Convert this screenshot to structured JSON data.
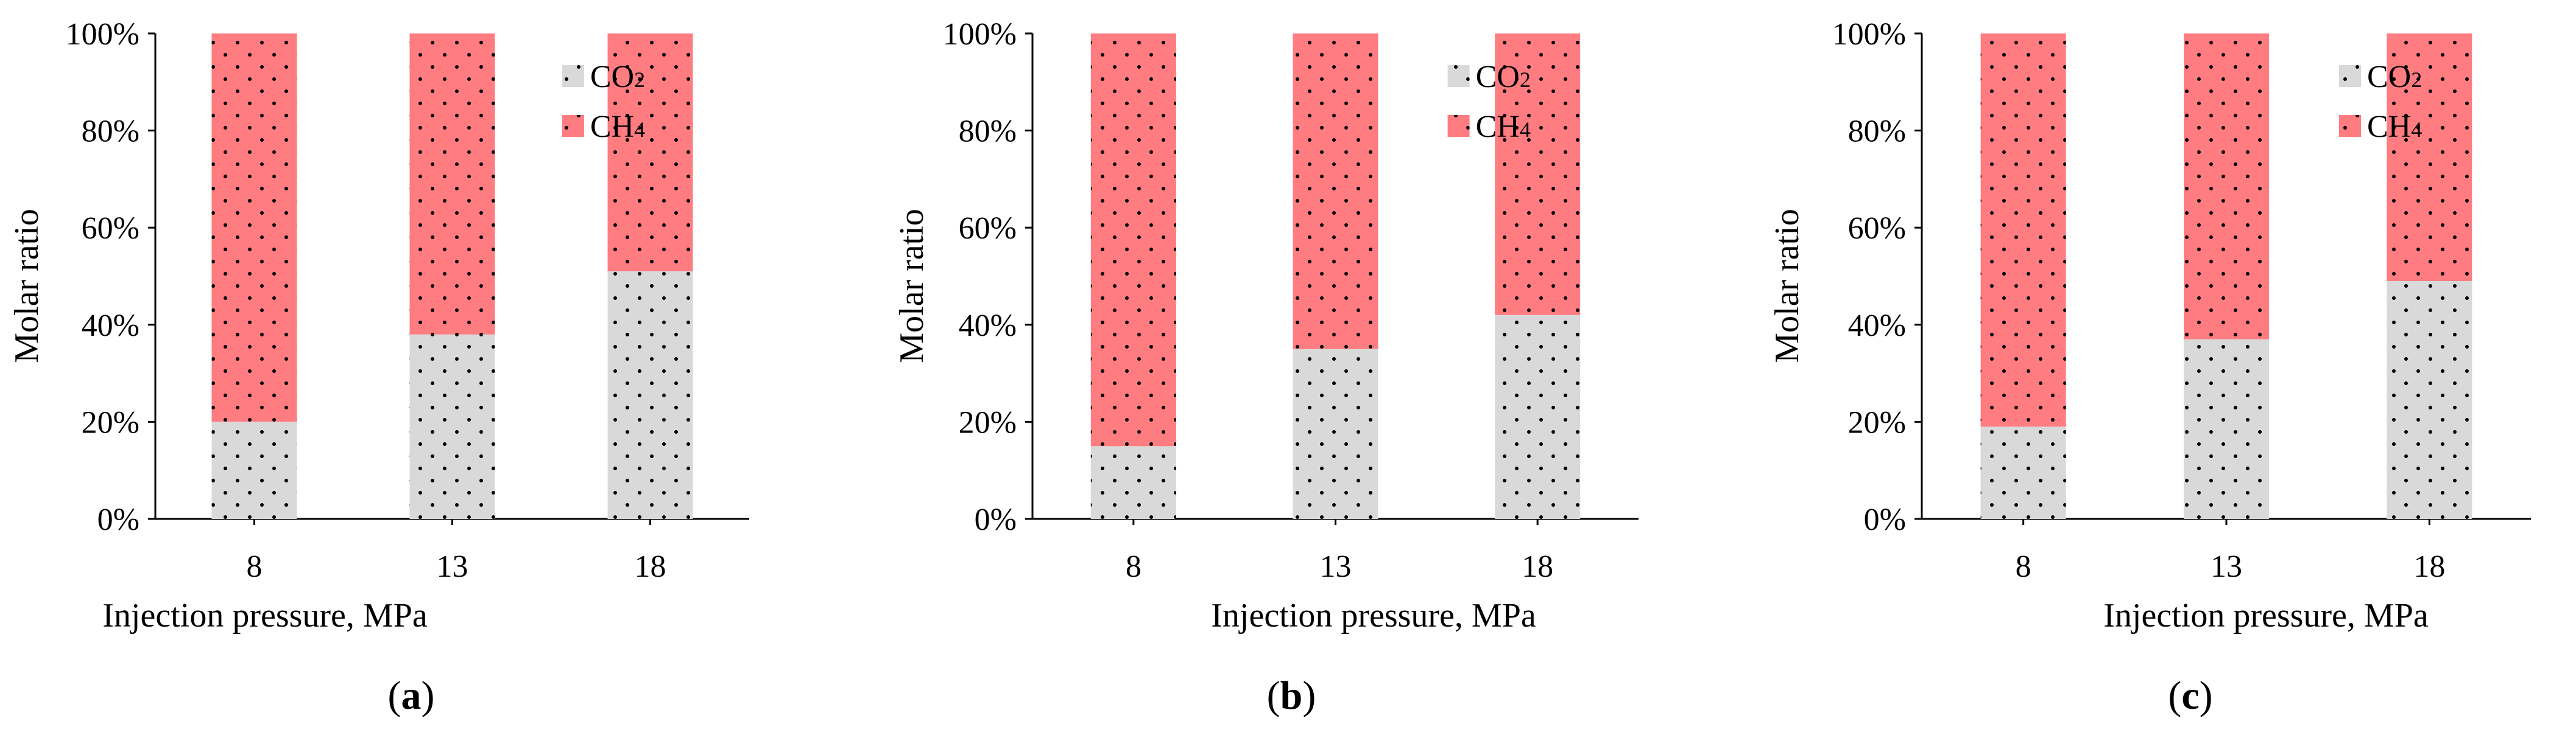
{
  "figure": {
    "colors": {
      "co2": "#d9d9d9",
      "ch4": "#ff7c80",
      "dots": "#000000",
      "axis": "#000000"
    }
  },
  "chart_data": [
    {
      "type": "bar",
      "stacked": true,
      "panel_label": "a",
      "xlabel": "Injection pressure, MPa",
      "ylabel": "Molar ratio",
      "ylim": [
        0,
        100
      ],
      "yticks": [
        "0%",
        "20%",
        "40%",
        "60%",
        "80%",
        "100%"
      ],
      "categories": [
        "8",
        "13",
        "18"
      ],
      "legend_position": "top-right",
      "series": [
        {
          "name": "CO2",
          "legend_base": "CO",
          "legend_sub": "2",
          "values": [
            20,
            38,
            51
          ]
        },
        {
          "name": "CH4",
          "legend_base": "CH",
          "legend_sub": "4",
          "values": [
            80,
            62,
            49
          ]
        }
      ]
    },
    {
      "type": "bar",
      "stacked": true,
      "panel_label": "b",
      "xlabel": "Injection pressure, MPa",
      "ylabel": "Molar ratio",
      "ylim": [
        0,
        100
      ],
      "yticks": [
        "0%",
        "20%",
        "40%",
        "60%",
        "80%",
        "100%"
      ],
      "categories": [
        "8",
        "13",
        "18"
      ],
      "legend_position": "top-right",
      "series": [
        {
          "name": "CO2",
          "legend_base": "CO",
          "legend_sub": "2",
          "values": [
            15,
            35,
            42
          ]
        },
        {
          "name": "CH4",
          "legend_base": "CH",
          "legend_sub": "4",
          "values": [
            85,
            65,
            58
          ]
        }
      ]
    },
    {
      "type": "bar",
      "stacked": true,
      "panel_label": "c",
      "xlabel": "Injection pressure, MPa",
      "ylabel": "Molar ratio",
      "ylim": [
        0,
        100
      ],
      "yticks": [
        "0%",
        "20%",
        "40%",
        "60%",
        "80%",
        "100%"
      ],
      "categories": [
        "8",
        "13",
        "18"
      ],
      "legend_position": "top-right",
      "series": [
        {
          "name": "CO2",
          "legend_base": "CO",
          "legend_sub": "2",
          "values": [
            19,
            37,
            49
          ]
        },
        {
          "name": "CH4",
          "legend_base": "CH",
          "legend_sub": "4",
          "values": [
            81,
            63,
            51
          ]
        }
      ]
    }
  ]
}
